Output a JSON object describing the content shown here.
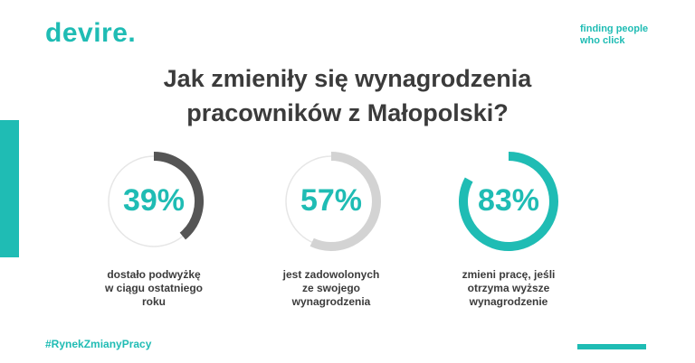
{
  "brand": {
    "logo": "devire.",
    "tagline": [
      "finding people",
      "who click"
    ]
  },
  "title": [
    "Jak zmieniły się wynagrodzenia",
    "pracowników z Małopolski?"
  ],
  "hashtag": "#RynekZmianyPracy",
  "colors": {
    "teal": "#1fbcb4",
    "dark": "#3b3b3b",
    "ring_bg": "#e6e6e6",
    "arc_dark": "#555555",
    "arc_light": "#d3d3d3"
  },
  "chart_data": {
    "type": "pie",
    "variant": "donut-progress",
    "items": [
      {
        "value": 39,
        "label": "39%",
        "caption": [
          "dostało podwyżkę",
          "w ciągu ostatniego",
          "roku"
        ],
        "arc_color": "#555555",
        "track": "thin"
      },
      {
        "value": 57,
        "label": "57%",
        "caption": [
          "jest zadowolonych",
          "ze swojego",
          "wynagrodzenia"
        ],
        "arc_color": "#d3d3d3",
        "track": "thin"
      },
      {
        "value": 83,
        "label": "83%",
        "caption": [
          "zmieni pracę, jeśli",
          "otrzyma wyższe",
          "wynagrodzenie"
        ],
        "arc_color": "#1fbcb4",
        "track": "none"
      }
    ]
  }
}
